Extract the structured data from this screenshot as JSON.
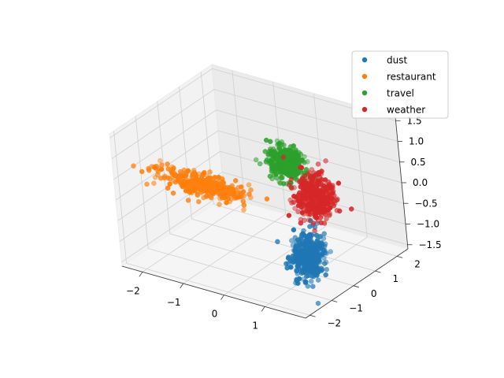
{
  "chart_data": {
    "type": "scatter",
    "projection": "3d",
    "title": "",
    "xlabel": "",
    "ylabel": "",
    "zlabel": "",
    "grid": true,
    "legend_position": "top-right",
    "xlim": [
      -2.5,
      2.0
    ],
    "ylim": [
      -2.2,
      2.5
    ],
    "zlim": [
      -1.6,
      1.6
    ],
    "xticks": [
      "−2",
      "−1",
      "0",
      "1"
    ],
    "yticks": [
      "−2",
      "−1",
      "0",
      "1",
      "2"
    ],
    "zticks": [
      "−1.5",
      "−1.0",
      "−0.5",
      "0.0",
      "0.5",
      "1.0",
      "1.5"
    ],
    "series": [
      {
        "name": "dust",
        "color": "#1f77b4",
        "center": [
          1.1,
          -0.3,
          -1.05
        ],
        "spread": [
          0.15,
          0.25,
          0.25
        ]
      },
      {
        "name": "restaurant",
        "color": "#ff7f0e",
        "center": [
          -1.3,
          -0.4,
          0.05
        ],
        "spread": [
          0.55,
          0.18,
          0.1
        ]
      },
      {
        "name": "travel",
        "color": "#2ca02c",
        "center": [
          0.0,
          1.0,
          0.45
        ],
        "spread": [
          0.2,
          0.2,
          0.2
        ]
      },
      {
        "name": "weather",
        "color": "#d62728",
        "center": [
          0.9,
          0.6,
          0.05
        ],
        "spread": [
          0.2,
          0.25,
          0.28
        ]
      }
    ]
  }
}
